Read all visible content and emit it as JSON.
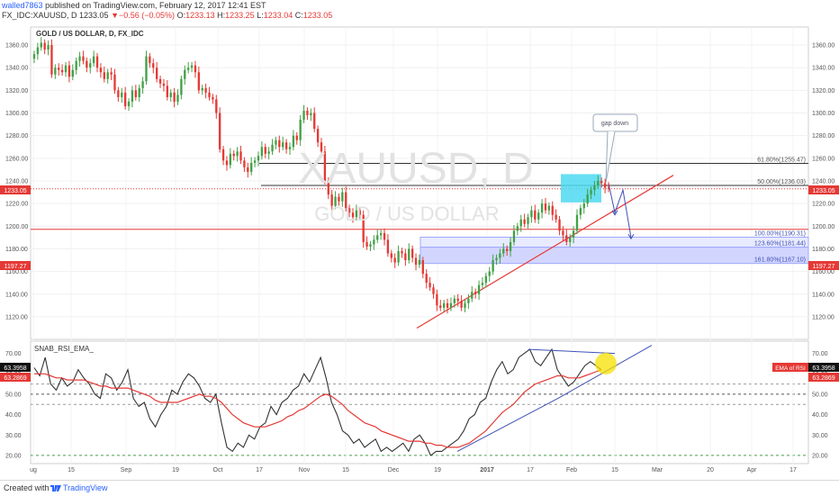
{
  "header": {
    "username": "walled7863",
    "published_text": "published on TradingView.com, February 12, 2017 12:41 EST",
    "symbol": "FX_IDC:XAUUSD, D",
    "last": "1233.05",
    "change": "▼−0.56 (−0.05%)",
    "o_label": "O:",
    "o": "1233.13",
    "h_label": "H:",
    "h": "1233.25",
    "l_label": "L:",
    "l": "1233.04",
    "c_label": "C:",
    "c": "1233.05"
  },
  "footer": {
    "created_with": "Created with",
    "brand": "TradingView"
  },
  "chart_data": [
    {
      "type": "candlestick",
      "title": "GOLD / US DOLLAR, D, FX_IDC",
      "watermark_symbol": "XAUUSD, D",
      "watermark_name": "GOLD / US DOLLAR",
      "ylim": [
        1108,
        1368
      ],
      "y_ticks": [
        1120,
        1140,
        1160,
        1180,
        1200,
        1220,
        1240,
        1260,
        1280,
        1300,
        1320,
        1340,
        1360
      ],
      "x_ticks": [
        "ug",
        "15",
        "Sep",
        "19",
        "Oct",
        "17",
        "Nov",
        "15",
        "Dec",
        "19",
        "2017",
        "17",
        "Feb",
        "15",
        "Mar",
        "20",
        "Apr",
        "17"
      ],
      "current_price_label": "1233.05",
      "level_label": "1197.27",
      "level_value": 1197.27,
      "close": [
        1352,
        1358,
        1362,
        1356,
        1360,
        1334,
        1340,
        1338,
        1336,
        1342,
        1332,
        1338,
        1346,
        1350,
        1346,
        1340,
        1344,
        1350,
        1340,
        1336,
        1330,
        1336,
        1334,
        1320,
        1314,
        1318,
        1306,
        1310,
        1320,
        1314,
        1322,
        1328,
        1350,
        1344,
        1340,
        1330,
        1326,
        1324,
        1314,
        1318,
        1310,
        1316,
        1330,
        1338,
        1340,
        1342,
        1336,
        1320,
        1322,
        1318,
        1314,
        1312,
        1300,
        1268,
        1258,
        1254,
        1264,
        1262,
        1266,
        1258,
        1252,
        1248,
        1256,
        1258,
        1262,
        1270,
        1264,
        1266,
        1272,
        1276,
        1270,
        1274,
        1268,
        1270,
        1280,
        1276,
        1294,
        1302,
        1298,
        1300,
        1286,
        1274,
        1266,
        1240,
        1228,
        1218,
        1226,
        1222,
        1230,
        1216,
        1212,
        1208,
        1214,
        1210,
        1186,
        1182,
        1184,
        1188,
        1192,
        1194,
        1188,
        1176,
        1172,
        1168,
        1178,
        1176,
        1170,
        1180,
        1172,
        1166,
        1170,
        1158,
        1150,
        1146,
        1140,
        1130,
        1128,
        1132,
        1128,
        1132,
        1136,
        1134,
        1128,
        1132,
        1136,
        1142,
        1140,
        1148,
        1150,
        1156,
        1160,
        1170,
        1172,
        1176,
        1180,
        1178,
        1186,
        1196,
        1200,
        1206,
        1202,
        1208,
        1214,
        1206,
        1212,
        1220,
        1214,
        1218,
        1210,
        1206,
        1196,
        1192,
        1186,
        1190,
        1196,
        1210,
        1216,
        1220,
        1228,
        1232,
        1236,
        1240,
        1238,
        1234,
        1233.05
      ],
      "annotations": {
        "fib": [
          {
            "label": "61.80%(1255.47)",
            "value": 1255.47
          },
          {
            "label": "50.00%(1236.03)",
            "value": 1236.03
          },
          {
            "label": "100.00%(1190.31)",
            "value": 1190.31
          },
          {
            "label": "123.60%(1181.44)",
            "value": 1181.44
          },
          {
            "label": "161.80%(1167.10)",
            "value": 1167.1
          }
        ],
        "callout": "gap down"
      }
    },
    {
      "type": "line",
      "title": "SNAB_RSI_EMA_",
      "ylim": [
        16,
        76
      ],
      "y_ticks": [
        20,
        30,
        40,
        50,
        60,
        70
      ],
      "series": [
        {
          "name": "",
          "color": "#333333",
          "values": [
            63,
            59,
            68,
            55,
            52,
            58,
            54,
            56,
            62,
            58,
            55,
            50,
            48,
            60,
            58,
            52,
            56,
            62,
            48,
            44,
            46,
            38,
            34,
            40,
            44,
            52,
            50,
            56,
            60,
            58,
            54,
            48,
            46,
            50,
            36,
            24,
            22,
            26,
            24,
            30,
            28,
            34,
            36,
            44,
            40,
            46,
            48,
            52,
            54,
            60,
            56,
            62,
            68,
            58,
            46,
            40,
            32,
            30,
            26,
            28,
            24,
            26,
            28,
            22,
            24,
            22,
            24,
            26,
            22,
            28,
            30,
            26,
            20,
            22,
            22,
            24,
            26,
            28,
            32,
            38,
            40,
            46,
            48,
            56,
            62,
            66,
            60,
            62,
            68,
            70,
            72,
            66,
            64,
            68,
            72,
            62,
            58,
            54,
            56,
            60,
            64,
            66,
            64,
            62
          ]
        },
        {
          "name": "EMA of RSI",
          "color": "#e53935",
          "values": [
            60,
            60,
            60,
            59,
            58,
            58,
            57,
            57,
            57,
            57,
            56,
            55,
            54,
            54,
            53,
            53,
            53,
            53,
            52,
            51,
            50,
            49,
            47,
            46,
            46,
            46,
            46,
            47,
            48,
            49,
            50,
            49,
            49,
            48,
            46,
            43,
            40,
            38,
            36,
            35,
            34,
            34,
            34,
            35,
            36,
            37,
            39,
            40,
            42,
            43,
            45,
            47,
            49,
            50,
            49,
            47,
            45,
            42,
            40,
            38,
            36,
            35,
            34,
            32,
            31,
            30,
            29,
            28,
            27,
            27,
            27,
            26,
            26,
            25,
            25,
            24,
            24,
            24,
            25,
            26,
            28,
            30,
            32,
            35,
            38,
            41,
            43,
            45,
            48,
            51,
            53,
            55,
            56,
            57,
            58,
            59,
            59,
            58,
            58,
            58,
            59,
            60,
            61,
            62
          ]
        }
      ],
      "last_value_label": "63.3958",
      "ema_value_label": "63.2869",
      "ema_legend": "EMA of RSI"
    }
  ]
}
